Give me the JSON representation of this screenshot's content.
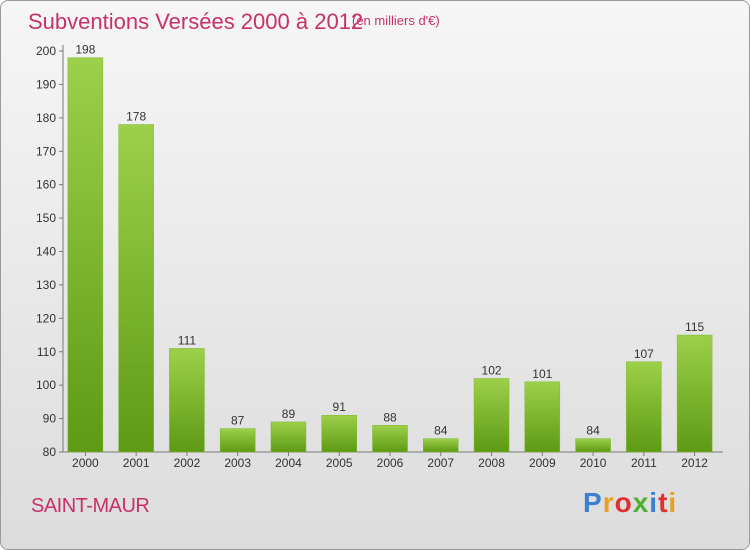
{
  "header": {
    "title": "Subventions Versées 2000 à 2012",
    "subtitle": "(en milliers d'€)"
  },
  "footer": {
    "place": "SAINT-MAUR",
    "brand": "Proxiti"
  },
  "colors": {
    "title": "#c8306a",
    "bar_top": "#9dd04a",
    "bar_bottom": "#5e9a14",
    "brand_letters": [
      "#3a7fd0",
      "#e8a020",
      "#e03030",
      "#50b030",
      "#3a7fd0",
      "#e03030",
      "#e8a020"
    ]
  },
  "chart_data": {
    "type": "bar",
    "categories": [
      "2000",
      "2001",
      "2002",
      "2003",
      "2004",
      "2005",
      "2006",
      "2007",
      "2008",
      "2009",
      "2010",
      "2011",
      "2012"
    ],
    "values": [
      198,
      178,
      111,
      87,
      89,
      91,
      88,
      84,
      102,
      101,
      84,
      107,
      115
    ],
    "ylim": [
      80,
      200
    ],
    "yticks": [
      80,
      90,
      100,
      110,
      120,
      130,
      140,
      150,
      160,
      170,
      180,
      190,
      200
    ],
    "grid": false,
    "legend": "none"
  }
}
